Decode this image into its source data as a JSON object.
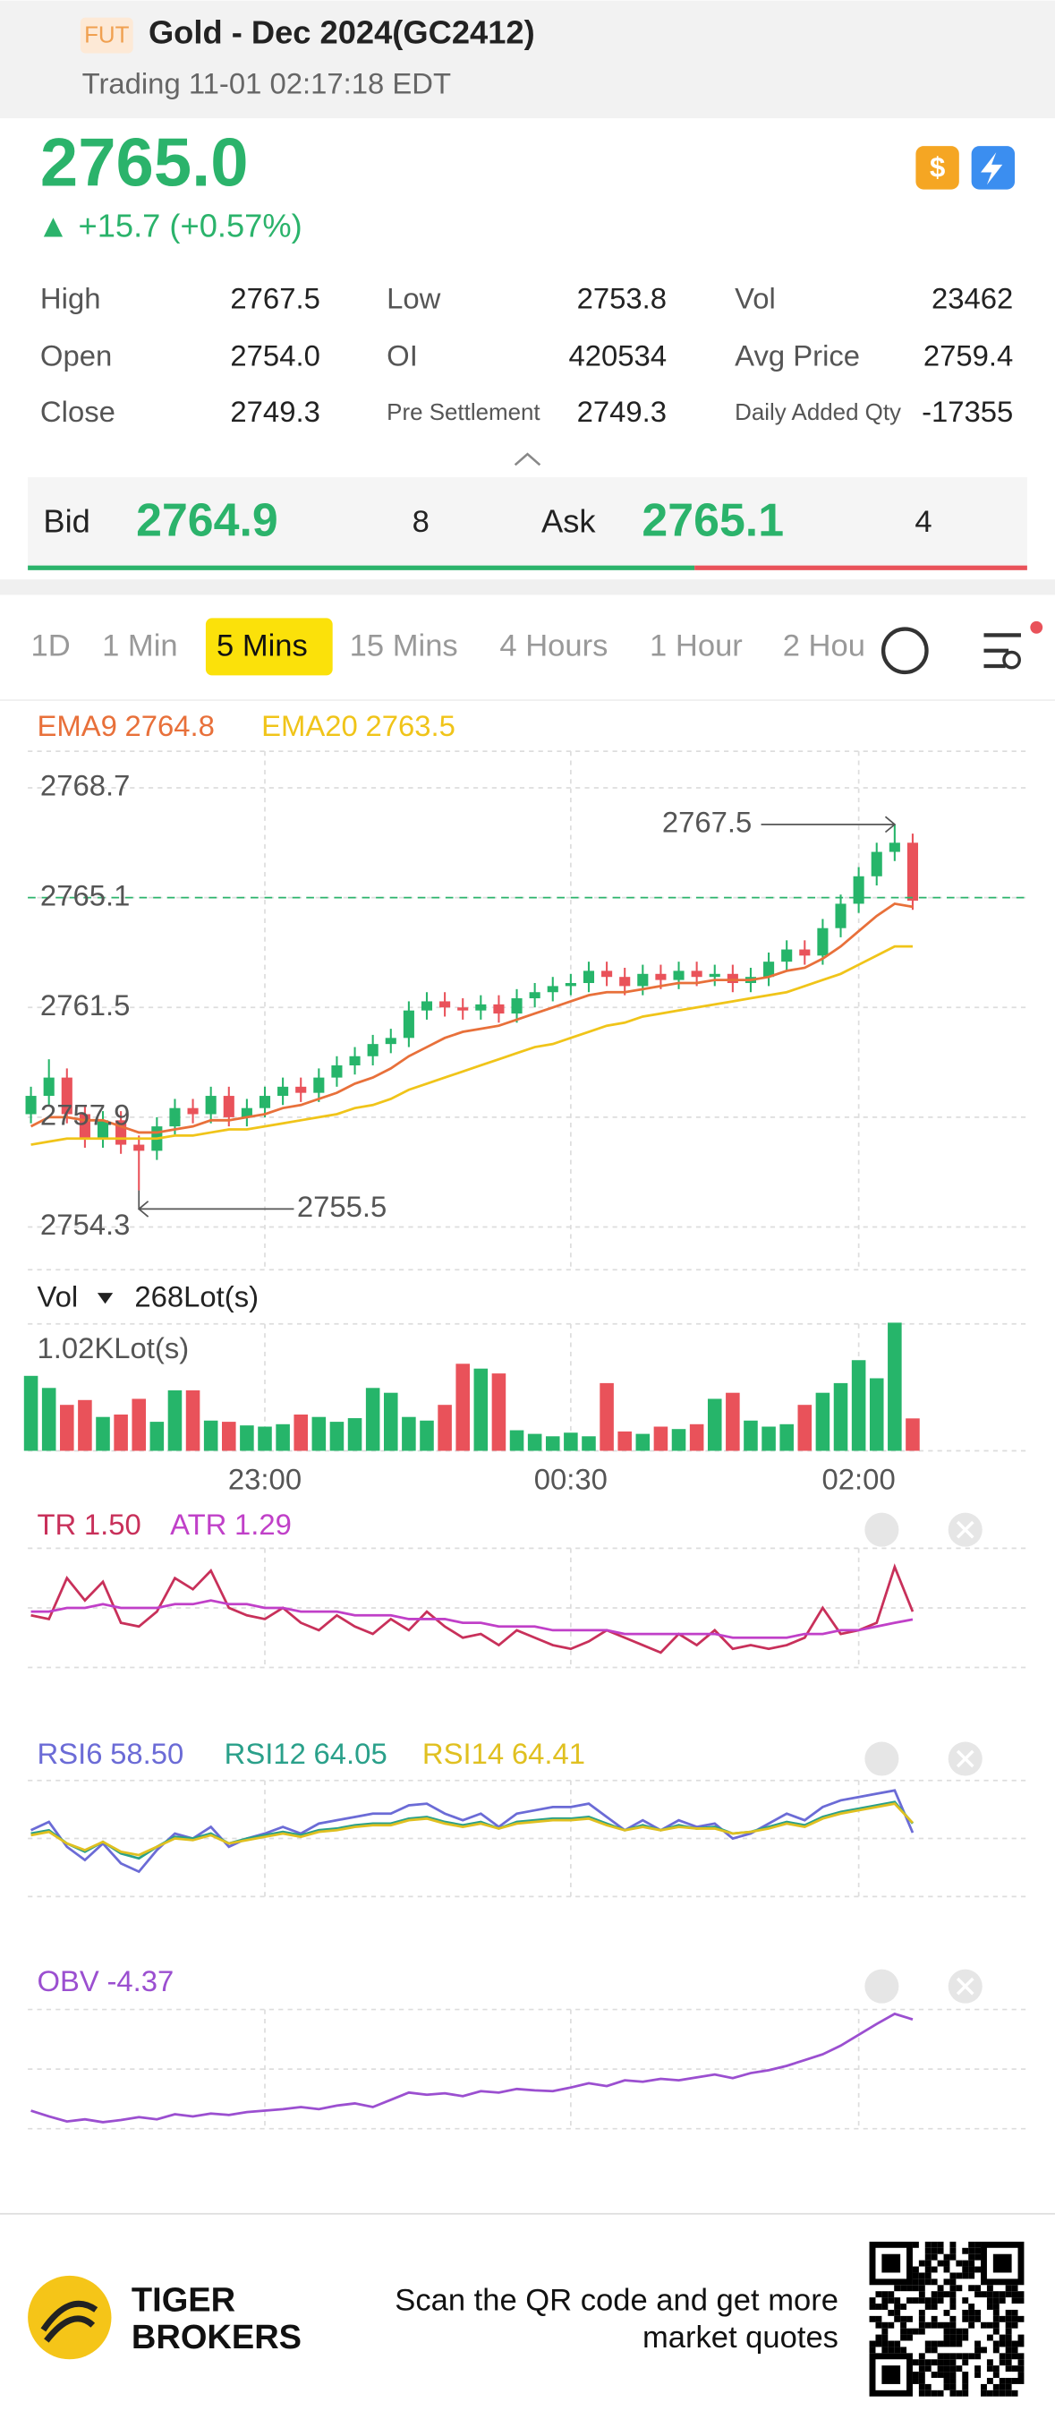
{
  "header": {
    "badge": "FUT",
    "title": "Gold - Dec 2024(GC2412)",
    "status": "Trading 11-01 02:17:18 EDT"
  },
  "quote": {
    "price": "2765.0",
    "change": "▲ +15.7 (+0.57%)"
  },
  "stats": [
    {
      "label": "High",
      "value": "2767.5"
    },
    {
      "label": "Low",
      "value": "2753.8"
    },
    {
      "label": "Vol",
      "value": "23462"
    },
    {
      "label": "Open",
      "value": "2754.0"
    },
    {
      "label": "OI",
      "value": "420534"
    },
    {
      "label": "Avg Price",
      "value": "2759.4"
    },
    {
      "label": "Close",
      "value": "2749.3"
    },
    {
      "label": "Pre Settlement",
      "value": "2749.3"
    },
    {
      "label": "Daily Added Qty",
      "value": "-17355"
    }
  ],
  "book": {
    "bid_label": "Bid",
    "bid": "2764.9",
    "bid_size": "8",
    "ask_label": "Ask",
    "ask": "2765.1",
    "ask_size": "4"
  },
  "tabs": {
    "items": [
      "1D",
      "1 Min",
      "5 Mins",
      "15 Mins",
      "4 Hours",
      "1 Hour",
      "2 Hou"
    ],
    "active": 2
  },
  "chart": {
    "type": "candlestick",
    "ylim": [
      2752.9,
      2769.9
    ],
    "yticks": [
      2768.7,
      2765.1,
      2761.5,
      2757.9,
      2754.3
    ],
    "last_price": 2765.1,
    "high_label": 2767.5,
    "low_label": 2755.5,
    "up_color": "#26b56a",
    "down_color": "#e9525a",
    "categories": [
      null,
      null,
      null,
      null,
      null,
      null,
      null,
      null,
      null,
      null,
      null,
      null,
      null,
      "23:00",
      null,
      null,
      null,
      null,
      null,
      null,
      null,
      null,
      null,
      null,
      null,
      null,
      null,
      null,
      null,
      null,
      "00:30",
      null,
      null,
      null,
      null,
      null,
      null,
      null,
      null,
      null,
      null,
      null,
      null,
      null,
      null,
      null,
      "02:00",
      null,
      null,
      null
    ],
    "ema": [
      {
        "name": "EMA9",
        "last": "2764.8",
        "color": "#e8703a",
        "values": [
          2757.6,
          2757.9,
          2757.9,
          2757.8,
          2757.8,
          2757.6,
          2757.4,
          2757.4,
          2757.5,
          2757.6,
          2757.8,
          2757.8,
          2757.9,
          2758.0,
          2758.2,
          2758.3,
          2758.5,
          2758.7,
          2759.0,
          2759.2,
          2759.5,
          2759.9,
          2760.2,
          2760.5,
          2760.7,
          2760.8,
          2760.9,
          2761.1,
          2761.3,
          2761.5,
          2761.7,
          2761.9,
          2762.0,
          2762.0,
          2762.1,
          2762.2,
          2762.3,
          2762.3,
          2762.4,
          2762.4,
          2762.4,
          2762.5,
          2762.7,
          2762.8,
          2763.1,
          2763.5,
          2764.0,
          2764.5,
          2764.9,
          2764.8
        ]
      },
      {
        "name": "EMA20",
        "last": "2763.5",
        "color": "#f0c419",
        "values": [
          2757.0,
          2757.1,
          2757.2,
          2757.2,
          2757.2,
          2757.2,
          2757.2,
          2757.2,
          2757.3,
          2757.3,
          2757.4,
          2757.5,
          2757.5,
          2757.6,
          2757.7,
          2757.8,
          2757.9,
          2758.0,
          2758.2,
          2758.3,
          2758.5,
          2758.8,
          2759.0,
          2759.2,
          2759.4,
          2759.6,
          2759.8,
          2760.0,
          2760.2,
          2760.3,
          2760.5,
          2760.7,
          2760.9,
          2761.0,
          2761.2,
          2761.3,
          2761.4,
          2761.5,
          2761.6,
          2761.7,
          2761.8,
          2761.9,
          2762.0,
          2762.2,
          2762.4,
          2762.6,
          2762.9,
          2763.2,
          2763.5,
          2763.5
        ]
      }
    ],
    "candles": {
      "open": [
        2758.0,
        2758.6,
        2759.2,
        2758.0,
        2757.2,
        2757.8,
        2757.0,
        2756.8,
        2757.6,
        2758.2,
        2758.0,
        2758.6,
        2757.9,
        2758.2,
        2758.6,
        2758.9,
        2758.7,
        2759.2,
        2759.6,
        2759.9,
        2760.3,
        2760.5,
        2761.4,
        2761.7,
        2761.5,
        2761.4,
        2761.6,
        2761.3,
        2761.8,
        2762.0,
        2762.2,
        2762.3,
        2762.7,
        2762.5,
        2762.2,
        2762.6,
        2762.4,
        2762.7,
        2762.5,
        2762.6,
        2762.3,
        2762.5,
        2763.0,
        2763.4,
        2763.2,
        2764.1,
        2764.9,
        2765.8,
        2766.6,
        2766.9
      ],
      "high": [
        2758.9,
        2759.8,
        2759.5,
        2758.3,
        2758.1,
        2758.1,
        2757.3,
        2757.9,
        2758.5,
        2758.5,
        2758.9,
        2758.9,
        2758.5,
        2758.9,
        2759.2,
        2759.2,
        2759.5,
        2759.9,
        2760.2,
        2760.6,
        2760.8,
        2761.7,
        2762.0,
        2762.0,
        2761.8,
        2761.9,
        2761.9,
        2762.1,
        2762.3,
        2762.5,
        2762.6,
        2763.0,
        2763.0,
        2762.8,
        2762.9,
        2762.9,
        2763.0,
        2763.0,
        2762.9,
        2762.9,
        2762.8,
        2763.3,
        2763.7,
        2763.7,
        2764.4,
        2765.2,
        2766.1,
        2766.9,
        2767.5,
        2767.2
      ],
      "low": [
        2757.7,
        2758.3,
        2757.7,
        2756.9,
        2756.9,
        2756.7,
        2755.5,
        2756.5,
        2757.3,
        2757.7,
        2757.7,
        2757.6,
        2757.6,
        2757.9,
        2758.3,
        2758.4,
        2758.4,
        2758.9,
        2759.3,
        2759.6,
        2760.0,
        2760.2,
        2761.1,
        2761.2,
        2761.1,
        2761.1,
        2761.0,
        2761.0,
        2761.5,
        2761.7,
        2761.9,
        2762.0,
        2762.2,
        2761.9,
        2761.9,
        2762.1,
        2762.1,
        2762.2,
        2762.2,
        2762.0,
        2762.0,
        2762.2,
        2762.7,
        2762.9,
        2762.9,
        2763.8,
        2764.6,
        2765.5,
        2766.3,
        2764.7
      ],
      "close": [
        2758.6,
        2759.2,
        2758.0,
        2757.2,
        2757.8,
        2757.0,
        2756.8,
        2757.6,
        2758.2,
        2758.0,
        2758.6,
        2757.9,
        2758.2,
        2758.6,
        2758.9,
        2758.7,
        2759.2,
        2759.6,
        2759.9,
        2760.3,
        2760.5,
        2761.4,
        2761.7,
        2761.5,
        2761.4,
        2761.6,
        2761.3,
        2761.8,
        2762.0,
        2762.2,
        2762.3,
        2762.7,
        2762.5,
        2762.2,
        2762.6,
        2762.4,
        2762.7,
        2762.5,
        2762.6,
        2762.3,
        2762.5,
        2763.0,
        2763.4,
        2763.2,
        2764.1,
        2764.9,
        2765.8,
        2766.6,
        2766.9,
        2765.0
      ]
    }
  },
  "volume": {
    "label": "Vol",
    "value": "268Lot(s)",
    "axis_label": "1.02KLot(s)",
    "ylim": [
      0,
      1050
    ],
    "values": [
      620,
      520,
      380,
      420,
      280,
      300,
      430,
      240,
      500,
      500,
      250,
      240,
      210,
      200,
      220,
      300,
      280,
      240,
      270,
      520,
      480,
      280,
      250,
      380,
      720,
      680,
      640,
      170,
      140,
      120,
      150,
      120,
      560,
      160,
      140,
      200,
      180,
      220,
      430,
      480,
      250,
      200,
      220,
      380,
      480,
      560,
      750,
      600,
      1060,
      268
    ]
  },
  "tr": {
    "ylim": [
      0,
      3.2
    ],
    "series": [
      {
        "name": "TR",
        "last": "1.50",
        "color": "#c8305a",
        "values": [
          1.4,
          1.3,
          2.4,
          1.8,
          2.3,
          1.2,
          1.1,
          1.5,
          2.4,
          2.1,
          2.6,
          1.6,
          1.4,
          1.3,
          1.6,
          1.2,
          1.0,
          1.4,
          1.1,
          0.9,
          1.3,
          1.0,
          1.5,
          1.1,
          0.8,
          0.9,
          0.6,
          1.0,
          0.8,
          0.6,
          0.5,
          0.7,
          1.0,
          0.8,
          0.6,
          0.4,
          0.9,
          0.6,
          1.0,
          0.5,
          0.6,
          0.5,
          0.6,
          0.8,
          1.6,
          0.9,
          1.0,
          1.2,
          2.7,
          1.5
        ]
      },
      {
        "name": "ATR",
        "last": "1.29",
        "color": "#c040c8",
        "values": [
          1.5,
          1.5,
          1.6,
          1.6,
          1.7,
          1.6,
          1.6,
          1.6,
          1.7,
          1.7,
          1.8,
          1.7,
          1.7,
          1.6,
          1.6,
          1.5,
          1.5,
          1.5,
          1.4,
          1.4,
          1.4,
          1.3,
          1.3,
          1.3,
          1.2,
          1.2,
          1.1,
          1.1,
          1.1,
          1.0,
          1.0,
          1.0,
          1.0,
          0.9,
          0.9,
          0.9,
          0.9,
          0.9,
          0.9,
          0.8,
          0.8,
          0.8,
          0.8,
          0.9,
          0.9,
          1.0,
          1.0,
          1.1,
          1.2,
          1.29
        ]
      }
    ]
  },
  "rsi": {
    "ylim": [
      20,
      90
    ],
    "series": [
      {
        "name": "RSI6",
        "last": "58.50",
        "color": "#6b6bd6",
        "values": [
          60,
          65,
          50,
          42,
          52,
          40,
          35,
          48,
          58,
          55,
          62,
          50,
          55,
          58,
          62,
          58,
          64,
          66,
          68,
          70,
          70,
          75,
          76,
          70,
          66,
          70,
          62,
          70,
          72,
          74,
          74,
          76,
          68,
          60,
          66,
          60,
          66,
          62,
          64,
          55,
          58,
          64,
          70,
          66,
          74,
          78,
          80,
          82,
          84,
          58.5
        ]
      },
      {
        "name": "RSI12",
        "last": "64.05",
        "color": "#2aa08a",
        "values": [
          58,
          60,
          52,
          47,
          53,
          46,
          43,
          50,
          56,
          55,
          58,
          52,
          55,
          57,
          59,
          57,
          60,
          61,
          63,
          64,
          64,
          67,
          68,
          65,
          63,
          65,
          61,
          65,
          66,
          67,
          67,
          68,
          64,
          60,
          63,
          60,
          63,
          61,
          62,
          58,
          59,
          62,
          65,
          63,
          68,
          71,
          73,
          75,
          77,
          64.05
        ]
      },
      {
        "name": "RSI14",
        "last": "64.41",
        "color": "#e0c020",
        "values": [
          57,
          59,
          52,
          48,
          53,
          47,
          45,
          50,
          55,
          54,
          57,
          52,
          54,
          56,
          58,
          56,
          59,
          60,
          62,
          63,
          63,
          66,
          67,
          64,
          62,
          64,
          61,
          64,
          65,
          66,
          66,
          67,
          63,
          60,
          62,
          60,
          62,
          61,
          61,
          58,
          59,
          61,
          64,
          62,
          67,
          70,
          72,
          74,
          76,
          64.41
        ]
      }
    ]
  },
  "obv": {
    "ylim": [
      -19.5,
      -3
    ],
    "series": [
      {
        "name": "OBV",
        "last": "-4.37",
        "color": "#9b4fd0",
        "values": [
          -17,
          -17.8,
          -18.5,
          -18.2,
          -18.6,
          -18.3,
          -17.9,
          -18.2,
          -17.5,
          -17.8,
          -17.4,
          -17.6,
          -17.2,
          -17.0,
          -16.8,
          -16.5,
          -16.8,
          -16.3,
          -16.0,
          -16.5,
          -15.5,
          -14.5,
          -14.8,
          -14.6,
          -15.0,
          -14.3,
          -14.5,
          -14.0,
          -14.2,
          -14.3,
          -13.8,
          -13.2,
          -13.6,
          -12.8,
          -13.0,
          -12.6,
          -12.8,
          -12.4,
          -12.0,
          -12.5,
          -11.8,
          -11.4,
          -10.8,
          -10.0,
          -9.2,
          -8.0,
          -6.5,
          -5.0,
          -3.6,
          -4.37
        ]
      }
    ]
  },
  "footer": {
    "brand1": "TIGER",
    "brand2": "BROKERS",
    "cta1": "Scan the QR code and get more",
    "cta2": "market quotes"
  }
}
